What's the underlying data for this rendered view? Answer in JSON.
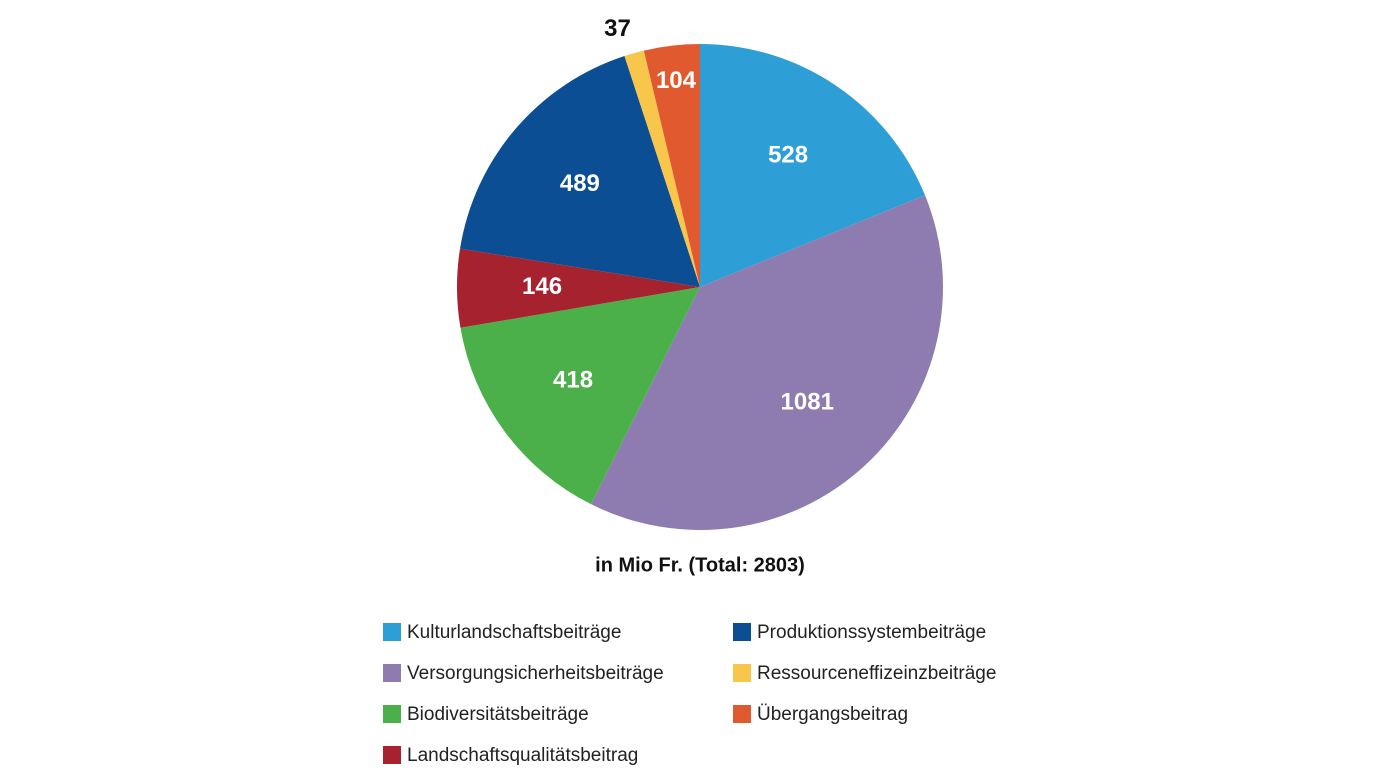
{
  "chart_data": {
    "type": "pie",
    "subtitle": "in Mio Fr. (Total: 2803)",
    "categories": [
      "Kulturlandschaftsbeiträge",
      "Versorgungsicherheitsbeiträge",
      "Biodiversitätsbeiträge",
      "Landschaftsqualitätsbeitrag",
      "Produktionssystembeiträge",
      "Ressourceneffizeinzbeiträge",
      "Übergangsbeitrag"
    ],
    "values": [
      528,
      1081,
      418,
      146,
      489,
      37,
      104
    ],
    "colors": [
      "#2e9fd6",
      "#8e7bb0",
      "#4bb04a",
      "#a6222e",
      "#0c4e93",
      "#f7c64a",
      "#e1592f"
    ]
  }
}
